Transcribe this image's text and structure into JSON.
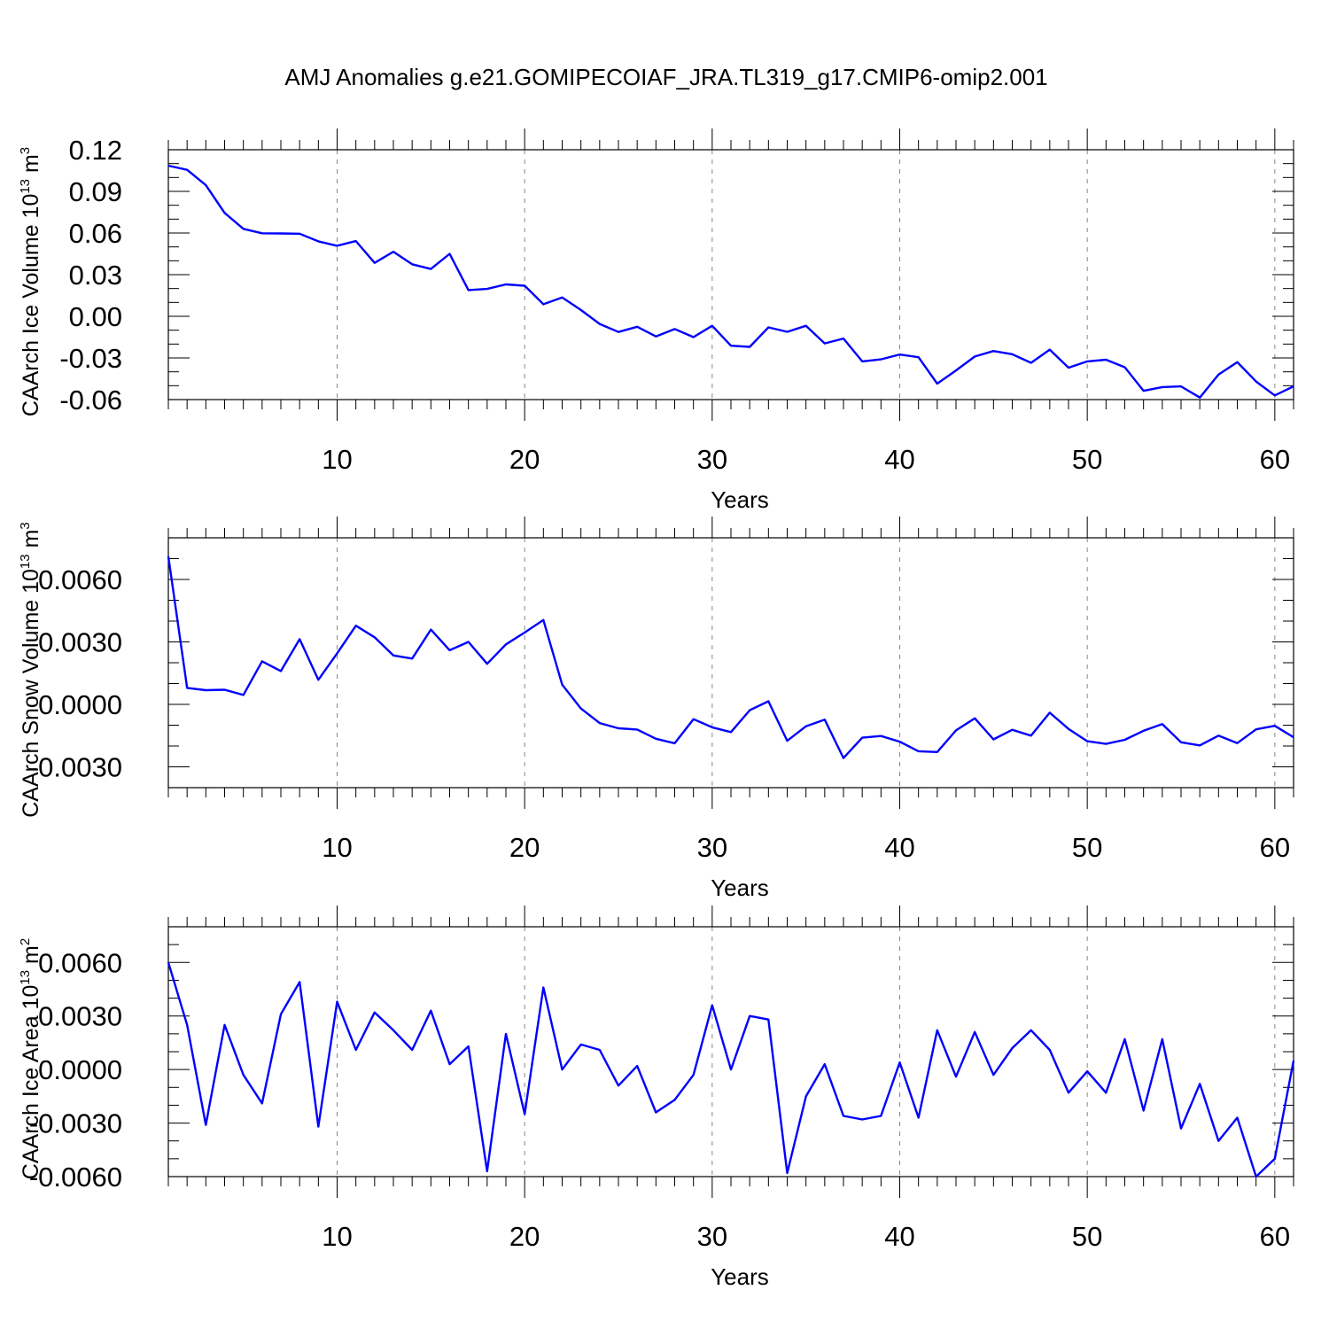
{
  "figure": {
    "title": "AMJ Anomalies g.e21.GOMIPECOIAF_JRA.TL319_g17.CMIP6-omip2.001",
    "line_color": "#0000ff"
  },
  "chart_data": [
    {
      "type": "line",
      "ylabel": "CAArch Ice Volume 10",
      "ylabel_sup": "13",
      "ylabel_unit": " m",
      "ylabel_unit_sup": "3",
      "xlabel": "Years",
      "xlim": [
        1,
        61
      ],
      "ylim": [
        -0.06,
        0.12
      ],
      "x_ticks": [
        10,
        20,
        30,
        40,
        50,
        60
      ],
      "x_tick_labels": [
        "10",
        "20",
        "30",
        "40",
        "50",
        "60"
      ],
      "y_ticks": [
        -0.06,
        -0.03,
        0.0,
        0.03,
        0.06,
        0.09,
        0.12
      ],
      "y_tick_labels": [
        "-0.06",
        "-0.03",
        "0.00",
        "0.03",
        "0.06",
        "0.09",
        "0.12"
      ],
      "gridlines_x": [
        10,
        20,
        30,
        40,
        50,
        60
      ],
      "x": [
        1,
        2,
        3,
        4,
        5,
        6,
        7,
        8,
        9,
        10,
        11,
        12,
        13,
        14,
        15,
        16,
        17,
        18,
        19,
        20,
        21,
        22,
        23,
        24,
        25,
        26,
        27,
        28,
        29,
        30,
        31,
        32,
        33,
        34,
        35,
        36,
        37,
        38,
        39,
        40,
        41,
        42,
        43,
        44,
        45,
        46,
        47,
        48,
        49,
        50,
        51,
        52,
        53,
        54,
        55,
        56,
        57,
        58,
        59,
        60,
        61
      ],
      "values": [
        0.1085,
        0.1055,
        0.0945,
        0.0745,
        0.063,
        0.0598,
        0.0597,
        0.0595,
        0.054,
        0.0508,
        0.0542,
        0.0385,
        0.0465,
        0.0375,
        0.0341,
        0.045,
        0.0189,
        0.0197,
        0.023,
        0.022,
        0.0087,
        0.0136,
        0.0045,
        -0.0055,
        -0.0113,
        -0.0075,
        -0.0145,
        -0.0092,
        -0.015,
        -0.0068,
        -0.0212,
        -0.022,
        -0.008,
        -0.0112,
        -0.0068,
        -0.0195,
        -0.016,
        -0.0325,
        -0.031,
        -0.0275,
        -0.0295,
        -0.0485,
        -0.039,
        -0.029,
        -0.025,
        -0.0273,
        -0.0335,
        -0.024,
        -0.037,
        -0.0325,
        -0.0313,
        -0.0367,
        -0.0537,
        -0.051,
        -0.0505,
        -0.0585,
        -0.042,
        -0.033,
        -0.047,
        -0.057,
        -0.0505
      ]
    },
    {
      "type": "line",
      "ylabel": "CAArch Snow Volume 10",
      "ylabel_sup": "13",
      "ylabel_unit": " m",
      "ylabel_unit_sup": "3",
      "xlabel": "Years",
      "xlim": [
        1,
        61
      ],
      "ylim": [
        -0.004,
        0.008
      ],
      "x_ticks": [
        10,
        20,
        30,
        40,
        50,
        60
      ],
      "x_tick_labels": [
        "10",
        "20",
        "30",
        "40",
        "50",
        "60"
      ],
      "y_ticks": [
        -0.003,
        0.0,
        0.003,
        0.006
      ],
      "y_tick_labels": [
        "-0.0030",
        "0.0000",
        "0.0030",
        "0.0060"
      ],
      "gridlines_x": [
        10,
        20,
        30,
        40,
        50,
        60
      ],
      "x": [
        1,
        2,
        3,
        4,
        5,
        6,
        7,
        8,
        9,
        10,
        11,
        12,
        13,
        14,
        15,
        16,
        17,
        18,
        19,
        20,
        21,
        22,
        23,
        24,
        25,
        26,
        27,
        28,
        29,
        30,
        31,
        32,
        33,
        34,
        35,
        36,
        37,
        38,
        39,
        40,
        41,
        42,
        43,
        44,
        45,
        46,
        47,
        48,
        49,
        50,
        51,
        52,
        53,
        54,
        55,
        56,
        57,
        58,
        59,
        60,
        61
      ],
      "values": [
        0.0071,
        0.00079,
        0.00068,
        0.0007,
        0.00045,
        0.00207,
        0.0016,
        0.00313,
        0.00118,
        0.00245,
        0.00378,
        0.00322,
        0.00235,
        0.0022,
        0.00359,
        0.0026,
        0.003,
        0.00195,
        0.00288,
        0.00345,
        0.00405,
        0.00095,
        -0.0002,
        -0.0009,
        -0.00115,
        -0.00121,
        -0.00165,
        -0.00187,
        -0.00071,
        -0.0011,
        -0.00133,
        -0.00028,
        0.00015,
        -0.00175,
        -0.00105,
        -0.00073,
        -0.00258,
        -0.0016,
        -0.00152,
        -0.00179,
        -0.00225,
        -0.00229,
        -0.00125,
        -0.00067,
        -0.00168,
        -0.00122,
        -0.0015,
        -0.0004,
        -0.00118,
        -0.00177,
        -0.0019,
        -0.0017,
        -0.00127,
        -0.00095,
        -0.00182,
        -0.00197,
        -0.0015,
        -0.00186,
        -0.0012,
        -0.00103,
        -0.00158
      ]
    },
    {
      "type": "line",
      "ylabel": "CAArch Ice Area 10",
      "ylabel_sup": "13",
      "ylabel_unit": " m",
      "ylabel_unit_sup": "2",
      "xlabel": "Years",
      "xlim": [
        1,
        61
      ],
      "ylim": [
        -0.006,
        0.008
      ],
      "x_ticks": [
        10,
        20,
        30,
        40,
        50,
        60
      ],
      "x_tick_labels": [
        "10",
        "20",
        "30",
        "40",
        "50",
        "60"
      ],
      "y_ticks": [
        -0.006,
        -0.003,
        0.0,
        0.003,
        0.006
      ],
      "y_tick_labels": [
        "-0.0060",
        "-0.0030",
        "0.0000",
        "0.0030",
        "0.0060"
      ],
      "gridlines_x": [
        10,
        20,
        30,
        40,
        50,
        60
      ],
      "x": [
        1,
        2,
        3,
        4,
        5,
        6,
        7,
        8,
        9,
        10,
        11,
        12,
        13,
        14,
        15,
        16,
        17,
        18,
        19,
        20,
        21,
        22,
        23,
        24,
        25,
        26,
        27,
        28,
        29,
        30,
        31,
        32,
        33,
        34,
        35,
        36,
        37,
        38,
        39,
        40,
        41,
        42,
        43,
        44,
        45,
        46,
        47,
        48,
        49,
        50,
        51,
        52,
        53,
        54,
        55,
        56,
        57,
        58,
        59,
        60,
        61
      ],
      "values": [
        0.006,
        0.0025,
        -0.0031,
        0.0025,
        -0.0003,
        -0.0019,
        0.0031,
        0.0049,
        -0.0032,
        0.0038,
        0.0011,
        0.0032,
        0.0022,
        0.0011,
        0.0033,
        0.0003,
        0.0013,
        -0.0057,
        0.002,
        -0.0025,
        0.0046,
        0.0,
        0.0014,
        0.0011,
        -0.0009,
        0.0002,
        -0.0024,
        -0.0017,
        -0.0003,
        0.0036,
        0.0,
        0.003,
        0.0028,
        -0.0058,
        -0.0015,
        0.0003,
        -0.0026,
        -0.0028,
        -0.0026,
        0.0004,
        -0.0027,
        0.0022,
        -0.0004,
        0.0021,
        -0.0003,
        0.0012,
        0.0022,
        0.0011,
        -0.0013,
        -0.0001,
        -0.0013,
        0.0017,
        -0.0023,
        0.0017,
        -0.0033,
        -0.0008,
        -0.004,
        -0.0027,
        -0.006,
        -0.005,
        0.0005
      ]
    }
  ]
}
